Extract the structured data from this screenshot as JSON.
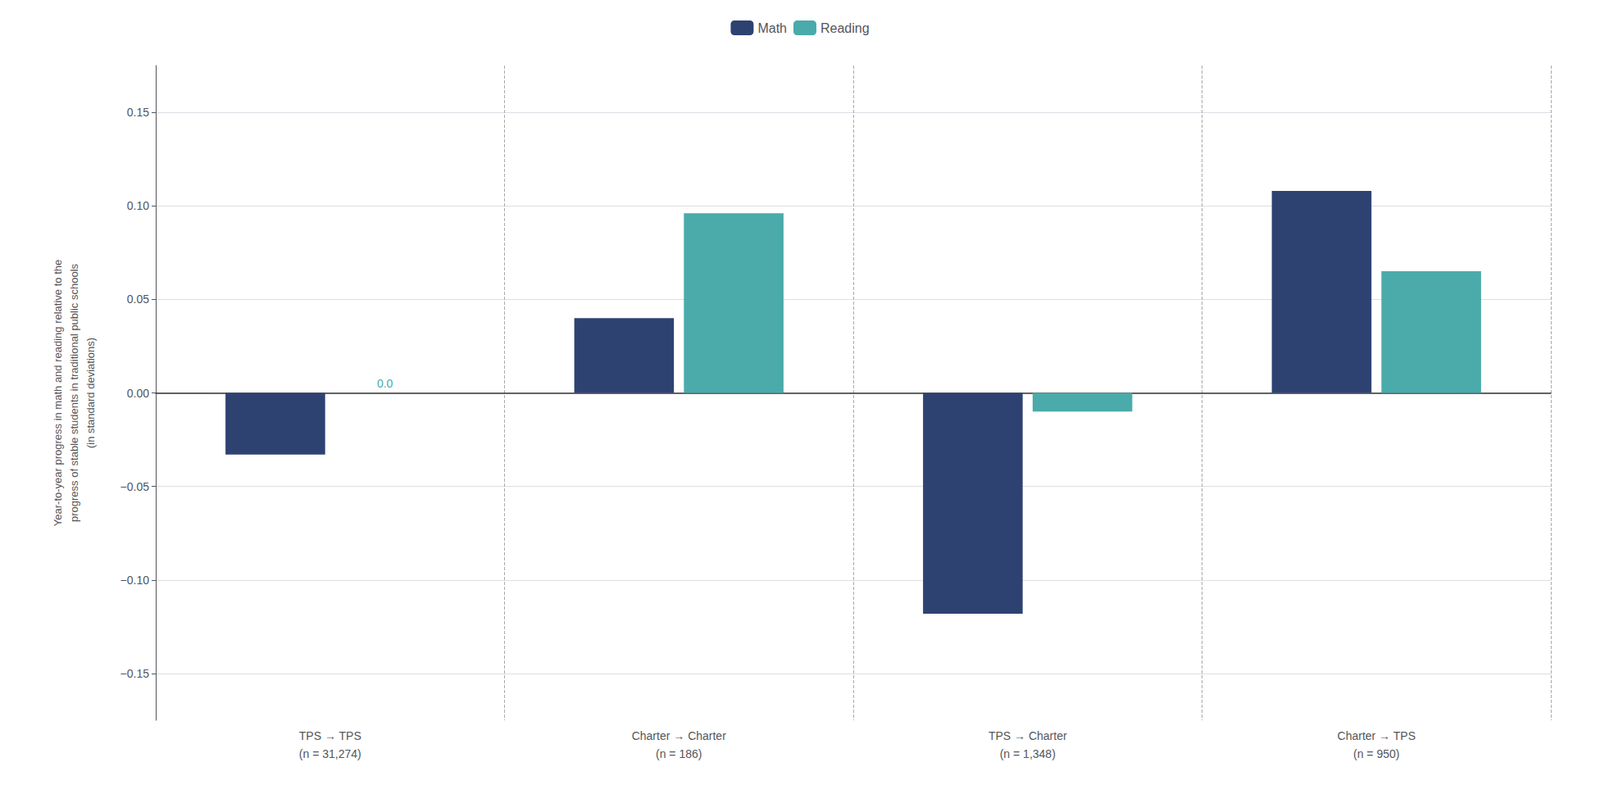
{
  "chart_data": {
    "type": "bar",
    "categories": [
      "TPS → TPS\n(n = 31,274)",
      "Charter → Charter\n(n = 186)",
      "TPS → Charter\n(n = 1,348)",
      "Charter → TPS\n(n = 950)"
    ],
    "series": [
      {
        "name": "Math",
        "color": "#2e4272",
        "values": [
          -0.033,
          0.04,
          -0.118,
          0.108
        ]
      },
      {
        "name": "Reading",
        "color": "#4aabaa",
        "values": [
          0.0,
          0.096,
          -0.01,
          0.065
        ]
      }
    ],
    "ylabel": "Year-to-year progress in math and reading relative to the\nprogress of stable students in traditional public schools\n(in standard deviations)",
    "ylim": [
      -0.175,
      0.175
    ],
    "yticks": [
      {
        "value": -0.15,
        "label": "−0.15"
      },
      {
        "value": -0.1,
        "label": "−0.10"
      },
      {
        "value": -0.05,
        "label": "−0.05"
      },
      {
        "value": 0,
        "label": "0.00"
      },
      0.05,
      {
        "value": 0.1,
        "label": "0.10"
      },
      0.15
    ],
    "annotations": [
      {
        "text": "0.0",
        "category": "TPS → TPS\n(n = 31,274)",
        "series": "Reading",
        "color": "#4aabaa"
      }
    ],
    "grid": true,
    "legend": "top"
  }
}
